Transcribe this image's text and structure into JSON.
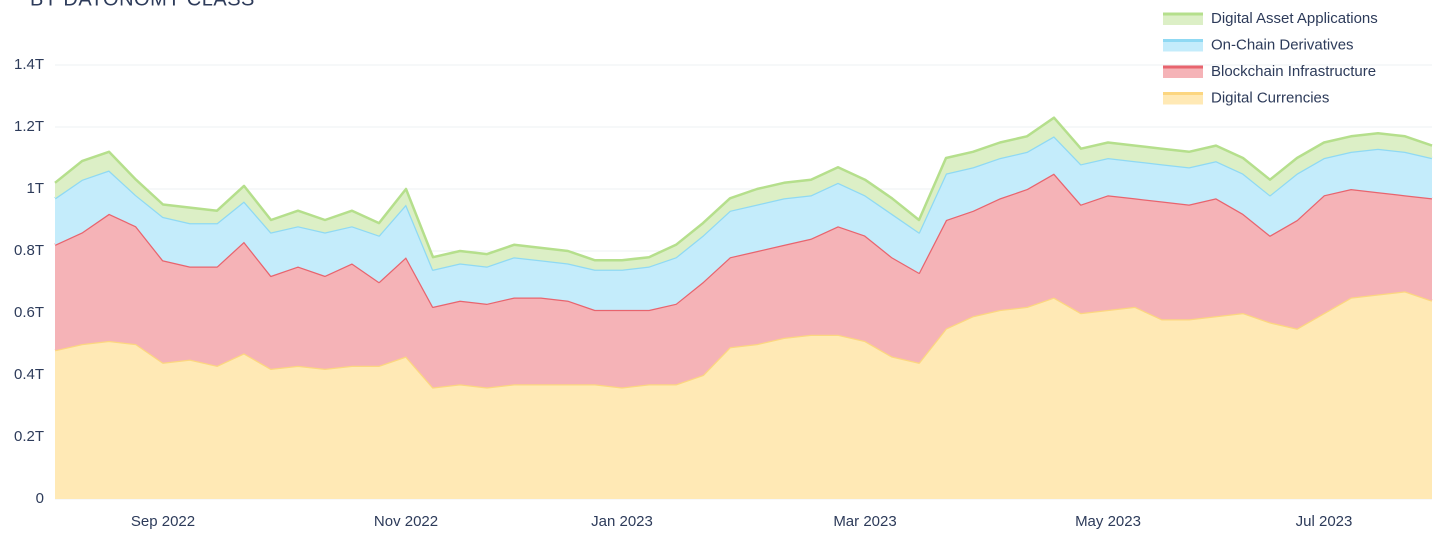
{
  "chart_data": {
    "type": "stacked_area",
    "title": "BY DATONOMY CLASS",
    "categories": [
      null,
      null,
      null,
      null,
      "Sep 2022",
      null,
      null,
      null,
      null,
      null,
      null,
      null,
      null,
      "Nov 2022",
      null,
      null,
      null,
      null,
      null,
      null,
      null,
      "Jan 2023",
      null,
      null,
      null,
      null,
      null,
      null,
      null,
      null,
      "Mar 2023",
      null,
      null,
      null,
      null,
      null,
      null,
      null,
      null,
      "May 2023",
      null,
      null,
      null,
      null,
      null,
      null,
      null,
      "Jul 2023",
      null,
      null,
      null,
      null
    ],
    "series": [
      {
        "name": "Digital Currencies",
        "color": "#fcd680",
        "fill": "#ffe9b5",
        "values": [
          0.48,
          0.5,
          0.51,
          0.5,
          0.44,
          0.45,
          0.43,
          0.47,
          0.42,
          0.43,
          0.42,
          0.43,
          0.43,
          0.46,
          0.36,
          0.37,
          0.36,
          0.37,
          0.37,
          0.37,
          0.37,
          0.36,
          0.37,
          0.37,
          0.4,
          0.49,
          0.5,
          0.52,
          0.53,
          0.53,
          0.51,
          0.46,
          0.44,
          0.55,
          0.59,
          0.61,
          0.62,
          0.65,
          0.6,
          0.61,
          0.62,
          0.58,
          0.58,
          0.59,
          0.6,
          0.57,
          0.55,
          0.6,
          0.65,
          0.66,
          0.67,
          0.64
        ]
      },
      {
        "name": "Blockchain Infrastructure",
        "color": "#e8646e",
        "fill": "#f5b3b7",
        "values": [
          0.34,
          0.36,
          0.41,
          0.38,
          0.33,
          0.3,
          0.32,
          0.36,
          0.3,
          0.32,
          0.3,
          0.33,
          0.27,
          0.32,
          0.26,
          0.27,
          0.27,
          0.28,
          0.28,
          0.27,
          0.24,
          0.25,
          0.24,
          0.26,
          0.3,
          0.29,
          0.3,
          0.3,
          0.31,
          0.35,
          0.34,
          0.32,
          0.29,
          0.35,
          0.34,
          0.36,
          0.38,
          0.4,
          0.35,
          0.37,
          0.35,
          0.38,
          0.37,
          0.38,
          0.32,
          0.28,
          0.35,
          0.38,
          0.35,
          0.33,
          0.31,
          0.33
        ]
      },
      {
        "name": "On-Chain Derivatives",
        "color": "#8fd9f3",
        "fill": "#c4ecfb",
        "values": [
          0.15,
          0.17,
          0.14,
          0.1,
          0.14,
          0.14,
          0.14,
          0.13,
          0.14,
          0.13,
          0.14,
          0.12,
          0.15,
          0.17,
          0.12,
          0.12,
          0.12,
          0.13,
          0.12,
          0.12,
          0.13,
          0.13,
          0.14,
          0.15,
          0.15,
          0.15,
          0.15,
          0.15,
          0.14,
          0.14,
          0.13,
          0.14,
          0.13,
          0.15,
          0.14,
          0.13,
          0.12,
          0.12,
          0.13,
          0.12,
          0.12,
          0.12,
          0.12,
          0.12,
          0.13,
          0.13,
          0.15,
          0.12,
          0.12,
          0.14,
          0.14,
          0.13
        ]
      },
      {
        "name": "Digital Asset Applications",
        "color": "#b5df8c",
        "fill": "#dcefc6",
        "values": [
          0.05,
          0.06,
          0.06,
          0.05,
          0.04,
          0.05,
          0.04,
          0.05,
          0.04,
          0.05,
          0.04,
          0.05,
          0.04,
          0.05,
          0.04,
          0.04,
          0.04,
          0.04,
          0.04,
          0.04,
          0.03,
          0.03,
          0.03,
          0.04,
          0.04,
          0.04,
          0.05,
          0.05,
          0.05,
          0.05,
          0.05,
          0.05,
          0.04,
          0.05,
          0.05,
          0.05,
          0.05,
          0.06,
          0.05,
          0.05,
          0.05,
          0.05,
          0.05,
          0.05,
          0.05,
          0.05,
          0.05,
          0.05,
          0.05,
          0.05,
          0.05,
          0.04
        ]
      }
    ],
    "ylim": [
      0,
      1.4
    ],
    "yticks": [
      0,
      {
        "value": 0.2,
        "label": "0.2T"
      },
      {
        "value": 0.4,
        "label": "0.4T"
      },
      {
        "value": 0.6,
        "label": "0.6T"
      },
      {
        "value": 0.8,
        "label": "0.8T"
      },
      {
        "value": 1,
        "label": "1T"
      },
      {
        "value": 1.2,
        "label": "1.2T"
      },
      {
        "value": 1.4,
        "label": "1.4T"
      }
    ],
    "grid": true,
    "legend": "top-right"
  }
}
